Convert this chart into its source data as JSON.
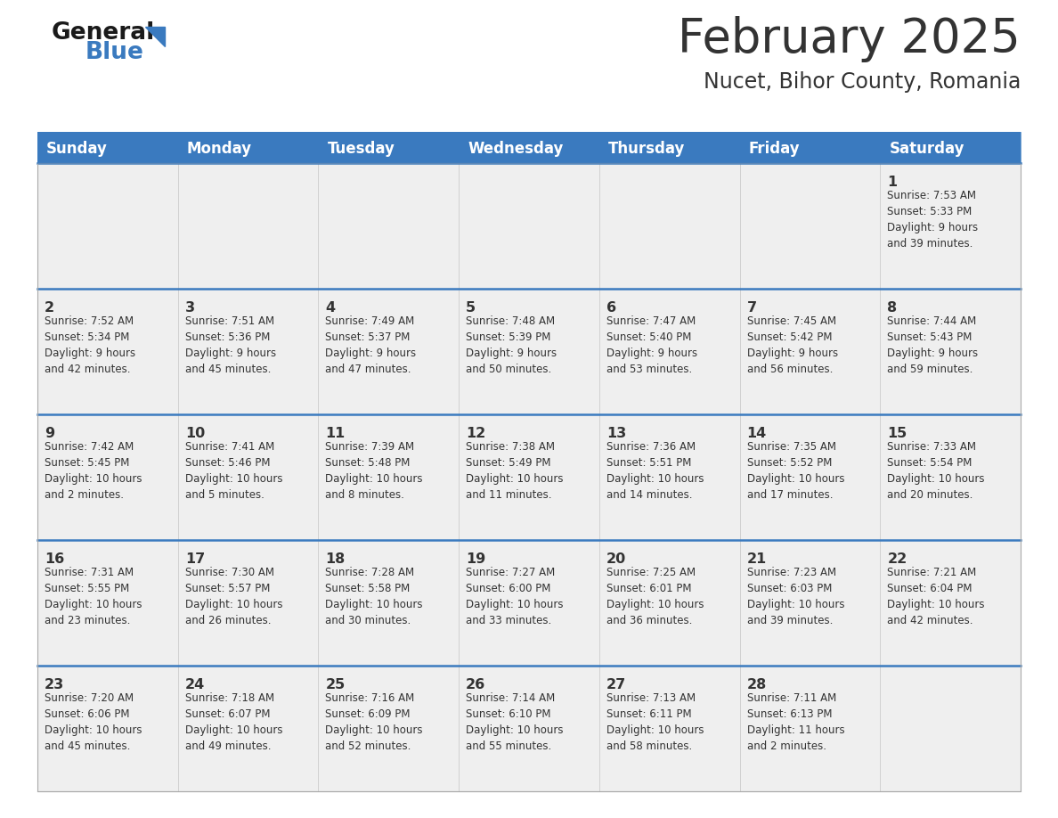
{
  "title": "February 2025",
  "subtitle": "Nucet, Bihor County, Romania",
  "header_bg": "#3a7abf",
  "header_text": "#ffffff",
  "row_bg_light": "#efefef",
  "separator_color": "#3a7abf",
  "text_color": "#333333",
  "days_of_week": [
    "Sunday",
    "Monday",
    "Tuesday",
    "Wednesday",
    "Thursday",
    "Friday",
    "Saturday"
  ],
  "weeks": [
    [
      {
        "day": null,
        "info": null
      },
      {
        "day": null,
        "info": null
      },
      {
        "day": null,
        "info": null
      },
      {
        "day": null,
        "info": null
      },
      {
        "day": null,
        "info": null
      },
      {
        "day": null,
        "info": null
      },
      {
        "day": 1,
        "info": "Sunrise: 7:53 AM\nSunset: 5:33 PM\nDaylight: 9 hours\nand 39 minutes."
      }
    ],
    [
      {
        "day": 2,
        "info": "Sunrise: 7:52 AM\nSunset: 5:34 PM\nDaylight: 9 hours\nand 42 minutes."
      },
      {
        "day": 3,
        "info": "Sunrise: 7:51 AM\nSunset: 5:36 PM\nDaylight: 9 hours\nand 45 minutes."
      },
      {
        "day": 4,
        "info": "Sunrise: 7:49 AM\nSunset: 5:37 PM\nDaylight: 9 hours\nand 47 minutes."
      },
      {
        "day": 5,
        "info": "Sunrise: 7:48 AM\nSunset: 5:39 PM\nDaylight: 9 hours\nand 50 minutes."
      },
      {
        "day": 6,
        "info": "Sunrise: 7:47 AM\nSunset: 5:40 PM\nDaylight: 9 hours\nand 53 minutes."
      },
      {
        "day": 7,
        "info": "Sunrise: 7:45 AM\nSunset: 5:42 PM\nDaylight: 9 hours\nand 56 minutes."
      },
      {
        "day": 8,
        "info": "Sunrise: 7:44 AM\nSunset: 5:43 PM\nDaylight: 9 hours\nand 59 minutes."
      }
    ],
    [
      {
        "day": 9,
        "info": "Sunrise: 7:42 AM\nSunset: 5:45 PM\nDaylight: 10 hours\nand 2 minutes."
      },
      {
        "day": 10,
        "info": "Sunrise: 7:41 AM\nSunset: 5:46 PM\nDaylight: 10 hours\nand 5 minutes."
      },
      {
        "day": 11,
        "info": "Sunrise: 7:39 AM\nSunset: 5:48 PM\nDaylight: 10 hours\nand 8 minutes."
      },
      {
        "day": 12,
        "info": "Sunrise: 7:38 AM\nSunset: 5:49 PM\nDaylight: 10 hours\nand 11 minutes."
      },
      {
        "day": 13,
        "info": "Sunrise: 7:36 AM\nSunset: 5:51 PM\nDaylight: 10 hours\nand 14 minutes."
      },
      {
        "day": 14,
        "info": "Sunrise: 7:35 AM\nSunset: 5:52 PM\nDaylight: 10 hours\nand 17 minutes."
      },
      {
        "day": 15,
        "info": "Sunrise: 7:33 AM\nSunset: 5:54 PM\nDaylight: 10 hours\nand 20 minutes."
      }
    ],
    [
      {
        "day": 16,
        "info": "Sunrise: 7:31 AM\nSunset: 5:55 PM\nDaylight: 10 hours\nand 23 minutes."
      },
      {
        "day": 17,
        "info": "Sunrise: 7:30 AM\nSunset: 5:57 PM\nDaylight: 10 hours\nand 26 minutes."
      },
      {
        "day": 18,
        "info": "Sunrise: 7:28 AM\nSunset: 5:58 PM\nDaylight: 10 hours\nand 30 minutes."
      },
      {
        "day": 19,
        "info": "Sunrise: 7:27 AM\nSunset: 6:00 PM\nDaylight: 10 hours\nand 33 minutes."
      },
      {
        "day": 20,
        "info": "Sunrise: 7:25 AM\nSunset: 6:01 PM\nDaylight: 10 hours\nand 36 minutes."
      },
      {
        "day": 21,
        "info": "Sunrise: 7:23 AM\nSunset: 6:03 PM\nDaylight: 10 hours\nand 39 minutes."
      },
      {
        "day": 22,
        "info": "Sunrise: 7:21 AM\nSunset: 6:04 PM\nDaylight: 10 hours\nand 42 minutes."
      }
    ],
    [
      {
        "day": 23,
        "info": "Sunrise: 7:20 AM\nSunset: 6:06 PM\nDaylight: 10 hours\nand 45 minutes."
      },
      {
        "day": 24,
        "info": "Sunrise: 7:18 AM\nSunset: 6:07 PM\nDaylight: 10 hours\nand 49 minutes."
      },
      {
        "day": 25,
        "info": "Sunrise: 7:16 AM\nSunset: 6:09 PM\nDaylight: 10 hours\nand 52 minutes."
      },
      {
        "day": 26,
        "info": "Sunrise: 7:14 AM\nSunset: 6:10 PM\nDaylight: 10 hours\nand 55 minutes."
      },
      {
        "day": 27,
        "info": "Sunrise: 7:13 AM\nSunset: 6:11 PM\nDaylight: 10 hours\nand 58 minutes."
      },
      {
        "day": 28,
        "info": "Sunrise: 7:11 AM\nSunset: 6:13 PM\nDaylight: 11 hours\nand 2 minutes."
      },
      {
        "day": null,
        "info": null
      }
    ]
  ]
}
